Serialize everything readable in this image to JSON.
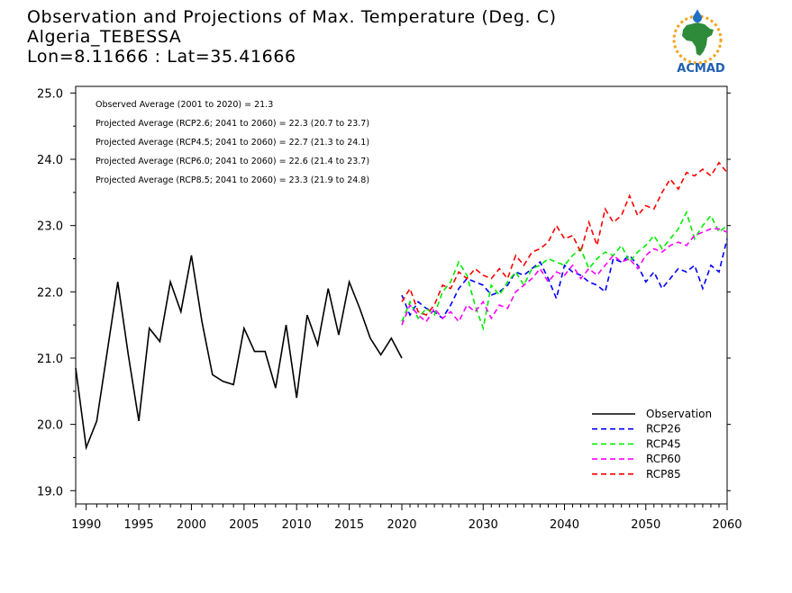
{
  "header": {
    "title": "Observation and Projections of Max. Temperature (Deg. C)",
    "location": "Algeria_TEBESSA",
    "coords": "Lon=8.11666 : Lat=35.41666"
  },
  "logo": {
    "text": "ACMAD",
    "colors": {
      "africa": "#2e8b3a",
      "ring": "#f2a31b",
      "drop": "#1f6fc4",
      "text": "#1f5fb0"
    }
  },
  "chart_data": {
    "type": "line",
    "ylim": [
      18.8,
      25.1
    ],
    "yticks": [
      "19.0",
      "20.0",
      "21.0",
      "22.0",
      "23.0",
      "24.0",
      "25.0"
    ],
    "xticks_left": [
      "1990",
      "1995",
      "2000",
      "2005",
      "2010",
      "2015",
      "2020"
    ],
    "xticks_right": [
      "2030",
      "2040",
      "2050",
      "2060"
    ],
    "annotations": [
      "Observed Average (2001 to 2020) = 21.3",
      "Projected Average (RCP2.6; 2041 to 2060) = 22.3 (20.7 to 23.7)",
      "Projected Average (RCP4.5; 2041 to 2060) = 22.7 (21.3 to 24.1)",
      "Projected Average (RCP6.0; 2041 to 2060) = 22.6 (21.4 to 23.7)",
      "Projected Average (RCP8.5; 2041 to 2060) = 23.3 (21.9 to 24.8)"
    ],
    "legend_position": "bottom-right",
    "observation": {
      "name": "Observation",
      "color": "#000000",
      "x": [
        1989,
        1990,
        1991,
        1992,
        1993,
        1994,
        1995,
        1996,
        1997,
        1998,
        1999,
        2000,
        2001,
        2002,
        2003,
        2004,
        2005,
        2006,
        2007,
        2008,
        2009,
        2010,
        2011,
        2012,
        2013,
        2014,
        2015,
        2016,
        2017,
        2018,
        2019,
        2020
      ],
      "values": [
        20.85,
        19.65,
        20.05,
        21.1,
        22.15,
        21.05,
        20.05,
        21.45,
        21.25,
        22.15,
        21.7,
        22.55,
        21.55,
        20.75,
        20.65,
        20.6,
        21.45,
        21.1,
        21.1,
        20.55,
        21.5,
        20.4,
        21.65,
        21.2,
        22.05,
        21.35,
        22.15,
        21.75,
        21.3,
        21.05,
        21.3,
        21.0
      ]
    },
    "series": [
      {
        "name": "RCP26",
        "color": "#0000ff",
        "x": [
          2020,
          2021,
          2022,
          2023,
          2024,
          2025,
          2026,
          2027,
          2028,
          2029,
          2030,
          2031,
          2032,
          2033,
          2034,
          2035,
          2036,
          2037,
          2038,
          2039,
          2040,
          2041,
          2042,
          2043,
          2044,
          2045,
          2046,
          2047,
          2048,
          2049,
          2050,
          2051,
          2052,
          2053,
          2054,
          2055,
          2056,
          2057,
          2058,
          2059,
          2060
        ],
        "values": [
          21.95,
          21.65,
          21.85,
          21.75,
          21.7,
          21.6,
          21.8,
          22.05,
          22.2,
          22.15,
          22.1,
          21.95,
          22.0,
          22.1,
          22.3,
          22.25,
          22.35,
          22.45,
          22.2,
          21.9,
          22.4,
          22.3,
          22.25,
          22.15,
          22.1,
          22.0,
          22.5,
          22.45,
          22.55,
          22.4,
          22.15,
          22.3,
          22.05,
          22.2,
          22.35,
          22.3,
          22.4,
          22.05,
          22.4,
          22.3,
          22.8
        ]
      },
      {
        "name": "RCP45",
        "color": "#00ee00",
        "x": [
          2020,
          2021,
          2022,
          2023,
          2024,
          2025,
          2026,
          2027,
          2028,
          2029,
          2030,
          2031,
          2032,
          2033,
          2034,
          2035,
          2036,
          2037,
          2038,
          2039,
          2040,
          2041,
          2042,
          2043,
          2044,
          2045,
          2046,
          2047,
          2048,
          2049,
          2050,
          2051,
          2052,
          2053,
          2054,
          2055,
          2056,
          2057,
          2058,
          2059,
          2060
        ],
        "values": [
          21.55,
          21.85,
          21.6,
          21.75,
          21.65,
          22.0,
          22.15,
          22.45,
          22.25,
          21.8,
          21.45,
          22.1,
          21.95,
          22.15,
          22.3,
          22.1,
          22.35,
          22.4,
          22.5,
          22.45,
          22.4,
          22.55,
          22.65,
          22.35,
          22.5,
          22.6,
          22.55,
          22.7,
          22.45,
          22.6,
          22.7,
          22.85,
          22.65,
          22.8,
          22.95,
          23.2,
          22.8,
          23.0,
          23.15,
          22.9,
          23.0
        ]
      },
      {
        "name": "RCP60",
        "color": "#ff00ff",
        "x": [
          2020,
          2021,
          2022,
          2023,
          2024,
          2025,
          2026,
          2027,
          2028,
          2029,
          2030,
          2031,
          2032,
          2033,
          2034,
          2035,
          2036,
          2037,
          2038,
          2039,
          2040,
          2041,
          2042,
          2043,
          2044,
          2045,
          2046,
          2047,
          2048,
          2049,
          2050,
          2051,
          2052,
          2053,
          2054,
          2055,
          2056,
          2057,
          2058,
          2059,
          2060
        ],
        "values": [
          21.5,
          21.8,
          21.65,
          21.55,
          21.75,
          21.6,
          21.7,
          21.55,
          21.8,
          21.7,
          21.85,
          21.6,
          21.8,
          21.75,
          22.0,
          22.1,
          22.2,
          22.35,
          22.15,
          22.3,
          22.25,
          22.4,
          22.2,
          22.35,
          22.25,
          22.4,
          22.55,
          22.45,
          22.5,
          22.35,
          22.55,
          22.65,
          22.6,
          22.7,
          22.75,
          22.7,
          22.85,
          22.9,
          22.95,
          22.95,
          22.9
        ]
      },
      {
        "name": "RCP85",
        "color": "#ff0000",
        "x": [
          2020,
          2021,
          2022,
          2023,
          2024,
          2025,
          2026,
          2027,
          2028,
          2029,
          2030,
          2031,
          2032,
          2033,
          2034,
          2035,
          2036,
          2037,
          2038,
          2039,
          2040,
          2041,
          2042,
          2043,
          2044,
          2045,
          2046,
          2047,
          2048,
          2049,
          2050,
          2051,
          2052,
          2053,
          2054,
          2055,
          2056,
          2057,
          2058,
          2059,
          2060
        ],
        "values": [
          21.85,
          22.05,
          21.7,
          21.65,
          21.8,
          22.1,
          22.05,
          22.3,
          22.2,
          22.35,
          22.25,
          22.2,
          22.35,
          22.2,
          22.55,
          22.4,
          22.6,
          22.65,
          22.75,
          23.0,
          22.8,
          22.85,
          22.6,
          23.05,
          22.7,
          23.25,
          23.05,
          23.15,
          23.45,
          23.15,
          23.3,
          23.25,
          23.5,
          23.7,
          23.55,
          23.8,
          23.75,
          23.85,
          23.75,
          23.95,
          23.8
        ]
      }
    ]
  }
}
